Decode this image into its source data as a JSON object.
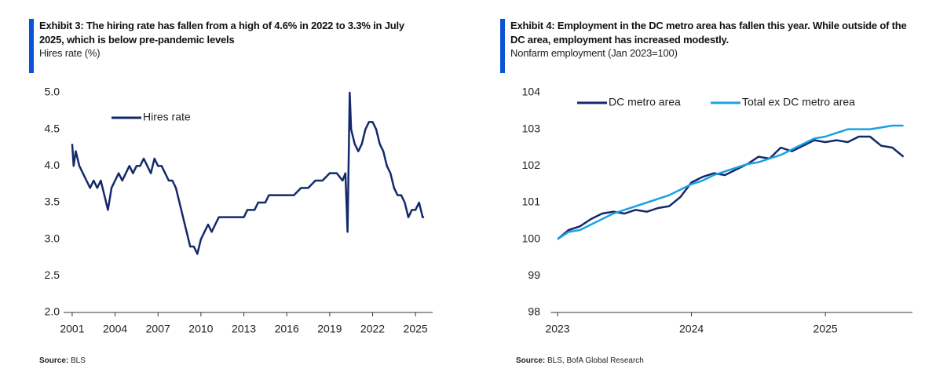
{
  "chart_data": [
    {
      "type": "line",
      "title": "Exhibit 3: The hiring rate has fallen from a high of 4.6% in 2022 to 3.3% in July 2025, which is below pre-pandemic levels",
      "subtitle": "Hires rate (%)",
      "source_label": "Source:",
      "source": "BLS",
      "x": [
        2001.0,
        2001.1,
        2001.25,
        2001.5,
        2001.75,
        2002.0,
        2002.25,
        2002.5,
        2002.75,
        2003.0,
        2003.25,
        2003.5,
        2003.75,
        2004.0,
        2004.25,
        2004.5,
        2004.75,
        2005.0,
        2005.25,
        2005.5,
        2005.75,
        2006.0,
        2006.25,
        2006.5,
        2006.75,
        2007.0,
        2007.25,
        2007.5,
        2007.75,
        2008.0,
        2008.25,
        2008.5,
        2008.75,
        2009.0,
        2009.25,
        2009.5,
        2009.75,
        2010.0,
        2010.25,
        2010.5,
        2010.75,
        2011.0,
        2011.25,
        2011.5,
        2011.75,
        2012.0,
        2012.25,
        2012.5,
        2012.75,
        2013.0,
        2013.25,
        2013.5,
        2013.75,
        2014.0,
        2014.25,
        2014.5,
        2014.75,
        2015.0,
        2015.5,
        2016.0,
        2016.5,
        2017.0,
        2017.5,
        2018.0,
        2018.5,
        2019.0,
        2019.5,
        2019.9,
        2020.1,
        2020.25,
        2020.4,
        2020.5,
        2020.75,
        2021.0,
        2021.25,
        2021.5,
        2021.75,
        2022.0,
        2022.25,
        2022.5,
        2022.75,
        2023.0,
        2023.25,
        2023.5,
        2023.75,
        2024.0,
        2024.25,
        2024.5,
        2024.75,
        2025.0,
        2025.25,
        2025.5,
        2025.6
      ],
      "series": [
        {
          "name": "Hires rate",
          "color": "#13296b",
          "values": [
            4.3,
            4.0,
            4.2,
            4.0,
            3.9,
            3.8,
            3.7,
            3.8,
            3.7,
            3.8,
            3.6,
            3.4,
            3.7,
            3.8,
            3.9,
            3.8,
            3.9,
            4.0,
            3.9,
            4.0,
            4.0,
            4.1,
            4.0,
            3.9,
            4.1,
            4.0,
            4.0,
            3.9,
            3.8,
            3.8,
            3.7,
            3.5,
            3.3,
            3.1,
            2.9,
            2.9,
            2.8,
            3.0,
            3.1,
            3.2,
            3.1,
            3.2,
            3.3,
            3.3,
            3.3,
            3.3,
            3.3,
            3.3,
            3.3,
            3.3,
            3.4,
            3.4,
            3.4,
            3.5,
            3.5,
            3.5,
            3.6,
            3.6,
            3.6,
            3.6,
            3.6,
            3.7,
            3.7,
            3.8,
            3.8,
            3.9,
            3.9,
            3.8,
            3.9,
            3.1,
            5.0,
            4.5,
            4.3,
            4.2,
            4.3,
            4.5,
            4.6,
            4.6,
            4.5,
            4.3,
            4.2,
            4.0,
            3.9,
            3.7,
            3.6,
            3.6,
            3.5,
            3.3,
            3.4,
            3.4,
            3.5,
            3.3,
            3.3
          ]
        }
      ],
      "xlim": [
        2000.4,
        2026.2
      ],
      "xticks": [
        2001,
        2004,
        2007,
        2010,
        2013,
        2016,
        2019,
        2022,
        2025
      ],
      "ylim": [
        2.0,
        5.0
      ],
      "yticks": [
        {
          "value": 2.0,
          "label": "2.0"
        },
        2.5,
        {
          "value": 3.0,
          "label": "3.0"
        },
        3.5,
        {
          "value": 4.0,
          "label": "4.0"
        },
        4.5,
        {
          "value": 5.0,
          "label": "5.0"
        }
      ],
      "grid": false,
      "legend": "upper left"
    },
    {
      "type": "line",
      "title": "Exhibit 4: Employment in the DC metro area has fallen this year. While outside of the DC area, employment has increased modestly.",
      "subtitle": "Nonfarm employment (Jan 2023=100)",
      "source_label": "Source:",
      "source": "BLS, BofA Global Research",
      "x": [
        2023.0,
        2023.083,
        2023.167,
        2023.25,
        2023.333,
        2023.417,
        2023.5,
        2023.583,
        2023.667,
        2023.75,
        2023.833,
        2023.917,
        2024.0,
        2024.083,
        2024.167,
        2024.25,
        2024.333,
        2024.417,
        2024.5,
        2024.583,
        2024.667,
        2024.75,
        2024.833,
        2024.917,
        2025.0,
        2025.083,
        2025.167,
        2025.25,
        2025.333,
        2025.417,
        2025.5,
        2025.583
      ],
      "series": [
        {
          "name": "DC metro area",
          "color": "#13296b",
          "values": [
            100.0,
            100.25,
            100.35,
            100.55,
            100.7,
            100.75,
            100.7,
            100.8,
            100.75,
            100.85,
            100.9,
            101.15,
            101.55,
            101.7,
            101.8,
            101.75,
            101.9,
            102.05,
            102.25,
            102.2,
            102.5,
            102.4,
            102.55,
            102.7,
            102.65,
            102.7,
            102.65,
            102.8,
            102.8,
            102.55,
            102.5,
            102.25
          ]
        },
        {
          "name": "Total ex DC metro area",
          "color": "#1ba1e2",
          "values": [
            100.0,
            100.2,
            100.25,
            100.4,
            100.55,
            100.7,
            100.8,
            100.9,
            101.0,
            101.1,
            101.2,
            101.35,
            101.5,
            101.6,
            101.75,
            101.85,
            101.95,
            102.05,
            102.1,
            102.2,
            102.3,
            102.45,
            102.6,
            102.75,
            102.8,
            102.9,
            103.0,
            103.0,
            103.0,
            103.05,
            103.1,
            103.1
          ]
        }
      ],
      "xlim": [
        2022.95,
        2025.65
      ],
      "xticks": [
        2023,
        2024,
        2025
      ],
      "ylim": [
        98,
        104
      ],
      "yticks": [
        98,
        99,
        100,
        101,
        102,
        103,
        104
      ],
      "grid": false,
      "legend": "upper left"
    }
  ]
}
